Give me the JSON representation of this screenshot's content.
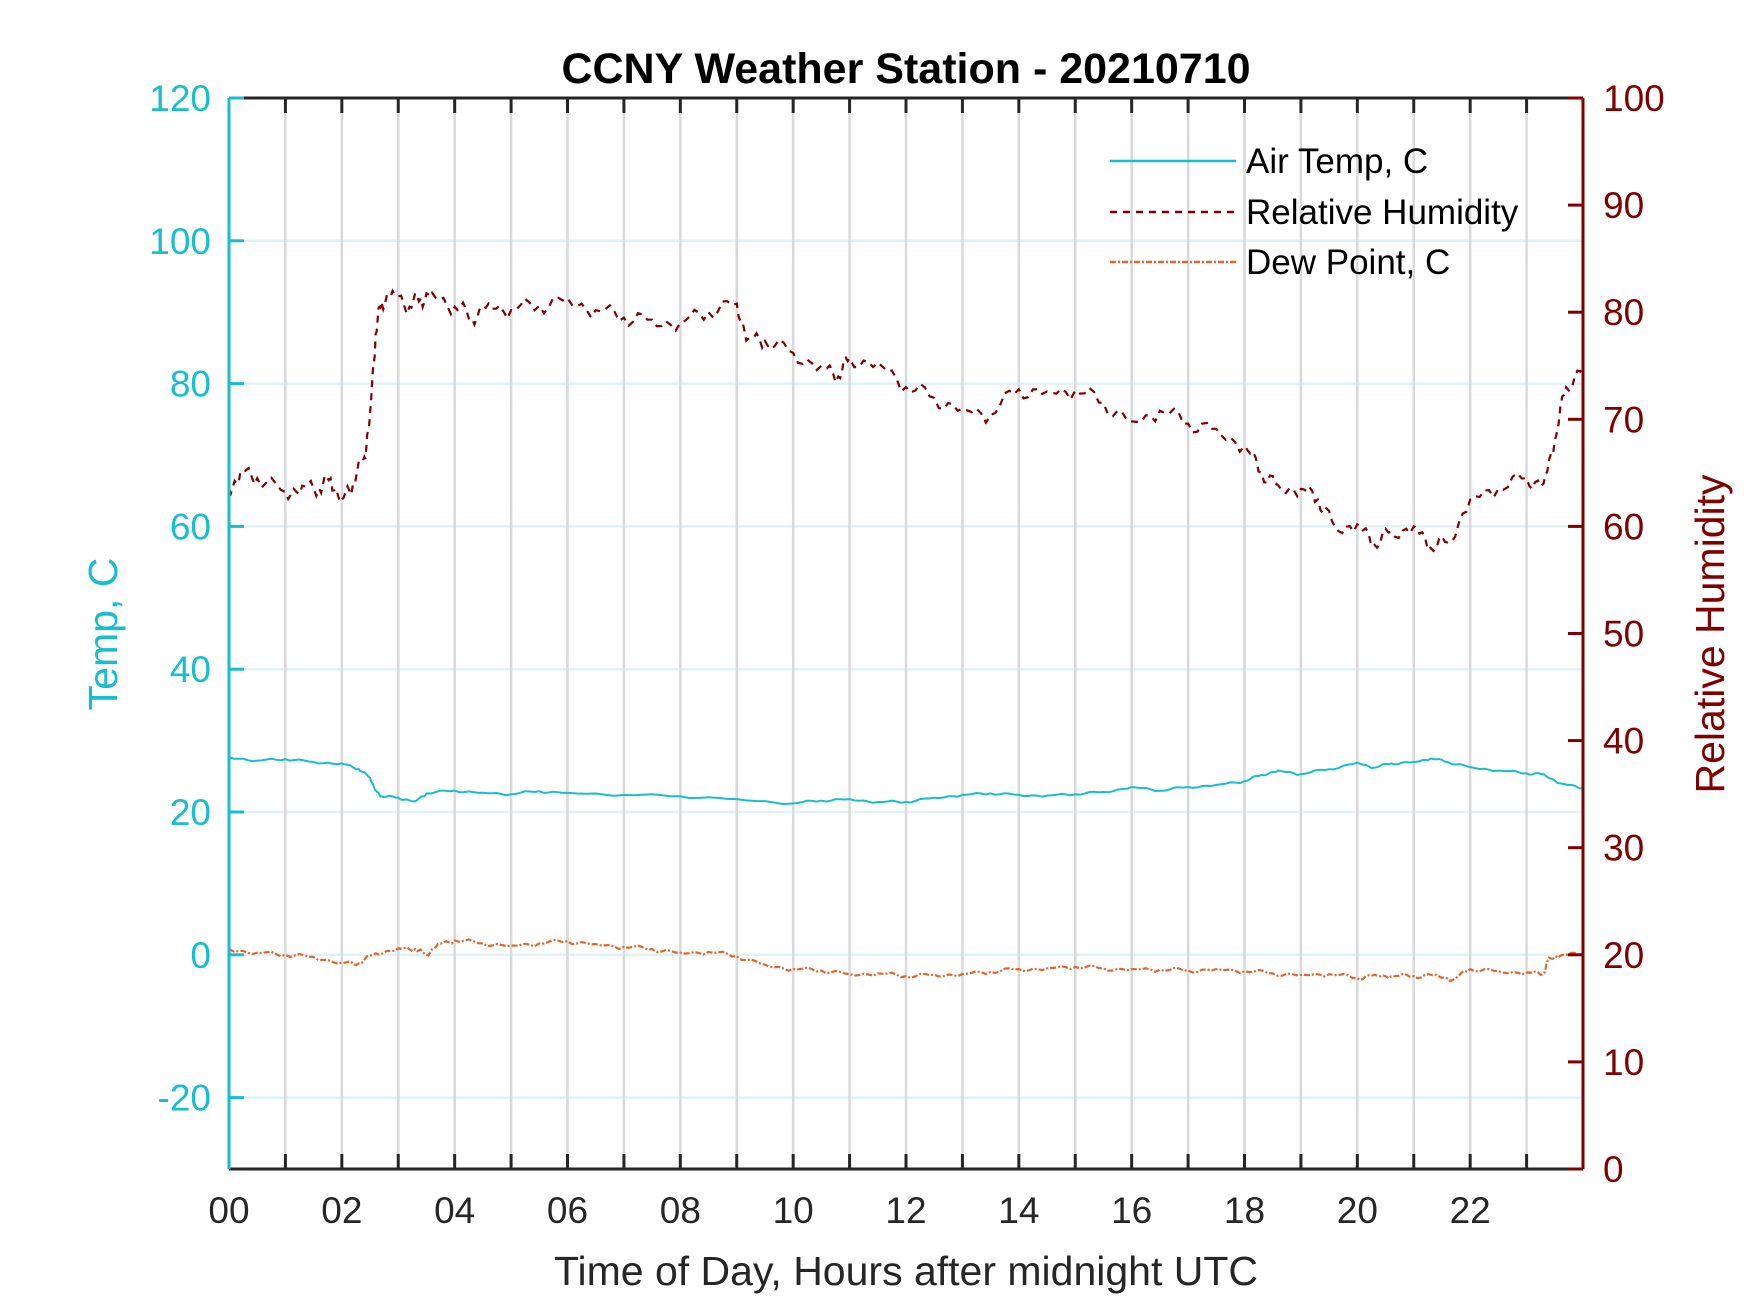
{
  "chart_data": {
    "type": "line",
    "title": "CCNY Weather Station - 20210710",
    "xlabel": "Time of Day, Hours after midnight UTC",
    "ylabel_left": "Temp, C",
    "ylabel_right": "Relative Humidity",
    "xlim": [
      0,
      24
    ],
    "ylim_left": [
      -30,
      120
    ],
    "ylim_right": [
      0,
      100
    ],
    "x_ticks": [
      0,
      2,
      4,
      6,
      8,
      10,
      12,
      14,
      16,
      18,
      20,
      22
    ],
    "x_tick_labels": [
      "00",
      "02",
      "04",
      "06",
      "08",
      "10",
      "12",
      "14",
      "16",
      "18",
      "20",
      "22"
    ],
    "x_minor_grid_step_hours": 1,
    "y_left_ticks": [
      -20,
      0,
      20,
      40,
      60,
      80,
      100,
      120
    ],
    "y_left_tick_labels": [
      "-20",
      "0",
      "20",
      "40",
      "60",
      "80",
      "100",
      "120"
    ],
    "y_right_ticks": [
      0,
      10,
      20,
      30,
      40,
      50,
      60,
      70,
      80,
      90,
      100
    ],
    "y_right_tick_labels": [
      "0",
      "10",
      "20",
      "30",
      "40",
      "50",
      "60",
      "70",
      "80",
      "90",
      "100"
    ],
    "grid": true,
    "legend_position": "top-right",
    "colors": {
      "left_axis": "#17becf",
      "right_axis": "#800000",
      "air_temp": "#17becf",
      "rh": "#800000",
      "dew_point": "#e0672b",
      "vgrid": "#d9d9d9",
      "hgrid": "#dff3f7",
      "axis": "#262626"
    },
    "series": [
      {
        "name": "Air Temp, C",
        "axis": "left",
        "style": "solid",
        "x": [
          0,
          0.5,
          1,
          1.5,
          2,
          2.3,
          2.5,
          2.6,
          2.7,
          3,
          3.3,
          3.5,
          4,
          4.5,
          5,
          5.5,
          6,
          7,
          8,
          9,
          10,
          10.5,
          11,
          11.5,
          12,
          12.5,
          13,
          13.5,
          14,
          14.5,
          15,
          15.5,
          16,
          16.5,
          17,
          17.5,
          18,
          18.3,
          18.6,
          19,
          19.5,
          20,
          20.3,
          20.6,
          21,
          21.3,
          21.6,
          22,
          22.5,
          23,
          23.3,
          23.6,
          24
        ],
        "values": [
          27.7,
          27.2,
          27.4,
          27.0,
          26.8,
          26.0,
          24.8,
          23.0,
          22.2,
          22.0,
          21.5,
          22.6,
          23.0,
          22.7,
          22.5,
          22.9,
          22.7,
          22.4,
          22.2,
          21.8,
          21.2,
          21.6,
          21.8,
          21.4,
          21.4,
          22.0,
          22.4,
          22.6,
          22.4,
          22.3,
          22.5,
          22.8,
          23.5,
          23.0,
          23.5,
          23.8,
          24.3,
          25.2,
          25.8,
          25.3,
          26.0,
          26.9,
          26.2,
          26.8,
          27.0,
          27.5,
          27.0,
          26.3,
          25.8,
          25.4,
          25.3,
          24.0,
          23.3
        ]
      },
      {
        "name": "Relative Humidity",
        "axis": "right",
        "style": "dashed",
        "x": [
          0,
          0.2,
          0.5,
          1,
          1.3,
          1.6,
          1.8,
          2,
          2.2,
          2.4,
          2.5,
          2.6,
          2.7,
          2.9,
          3.2,
          3.4,
          3.6,
          4,
          4.3,
          4.6,
          5,
          5.5,
          6,
          6.5,
          7,
          7.5,
          8,
          8.5,
          9,
          9.2,
          9.5,
          10,
          10.5,
          10.8,
          11,
          11.5,
          12,
          12.5,
          13,
          13.5,
          14,
          14.5,
          15,
          15.5,
          16,
          16.5,
          17,
          17.5,
          18,
          18.3,
          18.6,
          19,
          19.3,
          19.6,
          20,
          20.3,
          20.6,
          21,
          21.3,
          21.6,
          22,
          22.5,
          23,
          23.3,
          23.5,
          23.7,
          24
        ],
        "values": [
          63.5,
          65,
          64.5,
          63.2,
          63.8,
          63.5,
          64.5,
          62.5,
          64,
          66.5,
          70.5,
          78,
          81,
          82,
          80.5,
          81.3,
          81.8,
          80.5,
          79.5,
          80.8,
          80.2,
          80.6,
          81.3,
          80.2,
          79.5,
          79.3,
          79,
          80,
          80.8,
          77.5,
          77.3,
          76.2,
          75,
          74,
          75.7,
          75.3,
          73,
          72,
          71,
          70.4,
          72.8,
          72.6,
          72.7,
          71.5,
          69.8,
          70.8,
          69.6,
          69.1,
          67.5,
          65,
          63.8,
          63.5,
          62.5,
          60,
          60.2,
          58.3,
          59.5,
          60,
          58,
          58.5,
          62.5,
          63.5,
          64.5,
          64,
          68,
          73,
          75
        ]
      },
      {
        "name": "Dew Point, C",
        "axis": "left",
        "style": "dashdot",
        "x": [
          0,
          0.5,
          1,
          1.5,
          2,
          2.3,
          2.6,
          3,
          3.3,
          3.5,
          3.7,
          4,
          4.5,
          5,
          5.5,
          6,
          6.5,
          7,
          7.5,
          8,
          8.5,
          9,
          9.5,
          10,
          10.5,
          11,
          11.5,
          12,
          12.5,
          13,
          13.5,
          14,
          14.5,
          15,
          15.5,
          16,
          16.5,
          17,
          17.5,
          18,
          18.5,
          19,
          19.5,
          20,
          20.3,
          20.6,
          21,
          21.4,
          21.7,
          22,
          22.5,
          23,
          23.3,
          23.4,
          23.6,
          24
        ],
        "values": [
          0.8,
          0.3,
          0.0,
          -0.3,
          -1.1,
          -1.2,
          0.2,
          0.9,
          0.8,
          0.0,
          1.5,
          2.0,
          1.6,
          1.3,
          1.6,
          1.9,
          1.5,
          1.1,
          0.8,
          0.3,
          0.4,
          -0.2,
          -1.4,
          -2.0,
          -2.2,
          -2.7,
          -2.6,
          -3.0,
          -2.8,
          -2.7,
          -2.4,
          -2.0,
          -1.9,
          -1.7,
          -1.9,
          -2.0,
          -2.1,
          -2.2,
          -2.0,
          -2.3,
          -2.6,
          -2.8,
          -2.7,
          -3.3,
          -2.8,
          -3.0,
          -3.0,
          -2.8,
          -3.5,
          -2.0,
          -2.3,
          -2.5,
          -2.7,
          -0.4,
          -0.1,
          0.2
        ]
      }
    ]
  }
}
